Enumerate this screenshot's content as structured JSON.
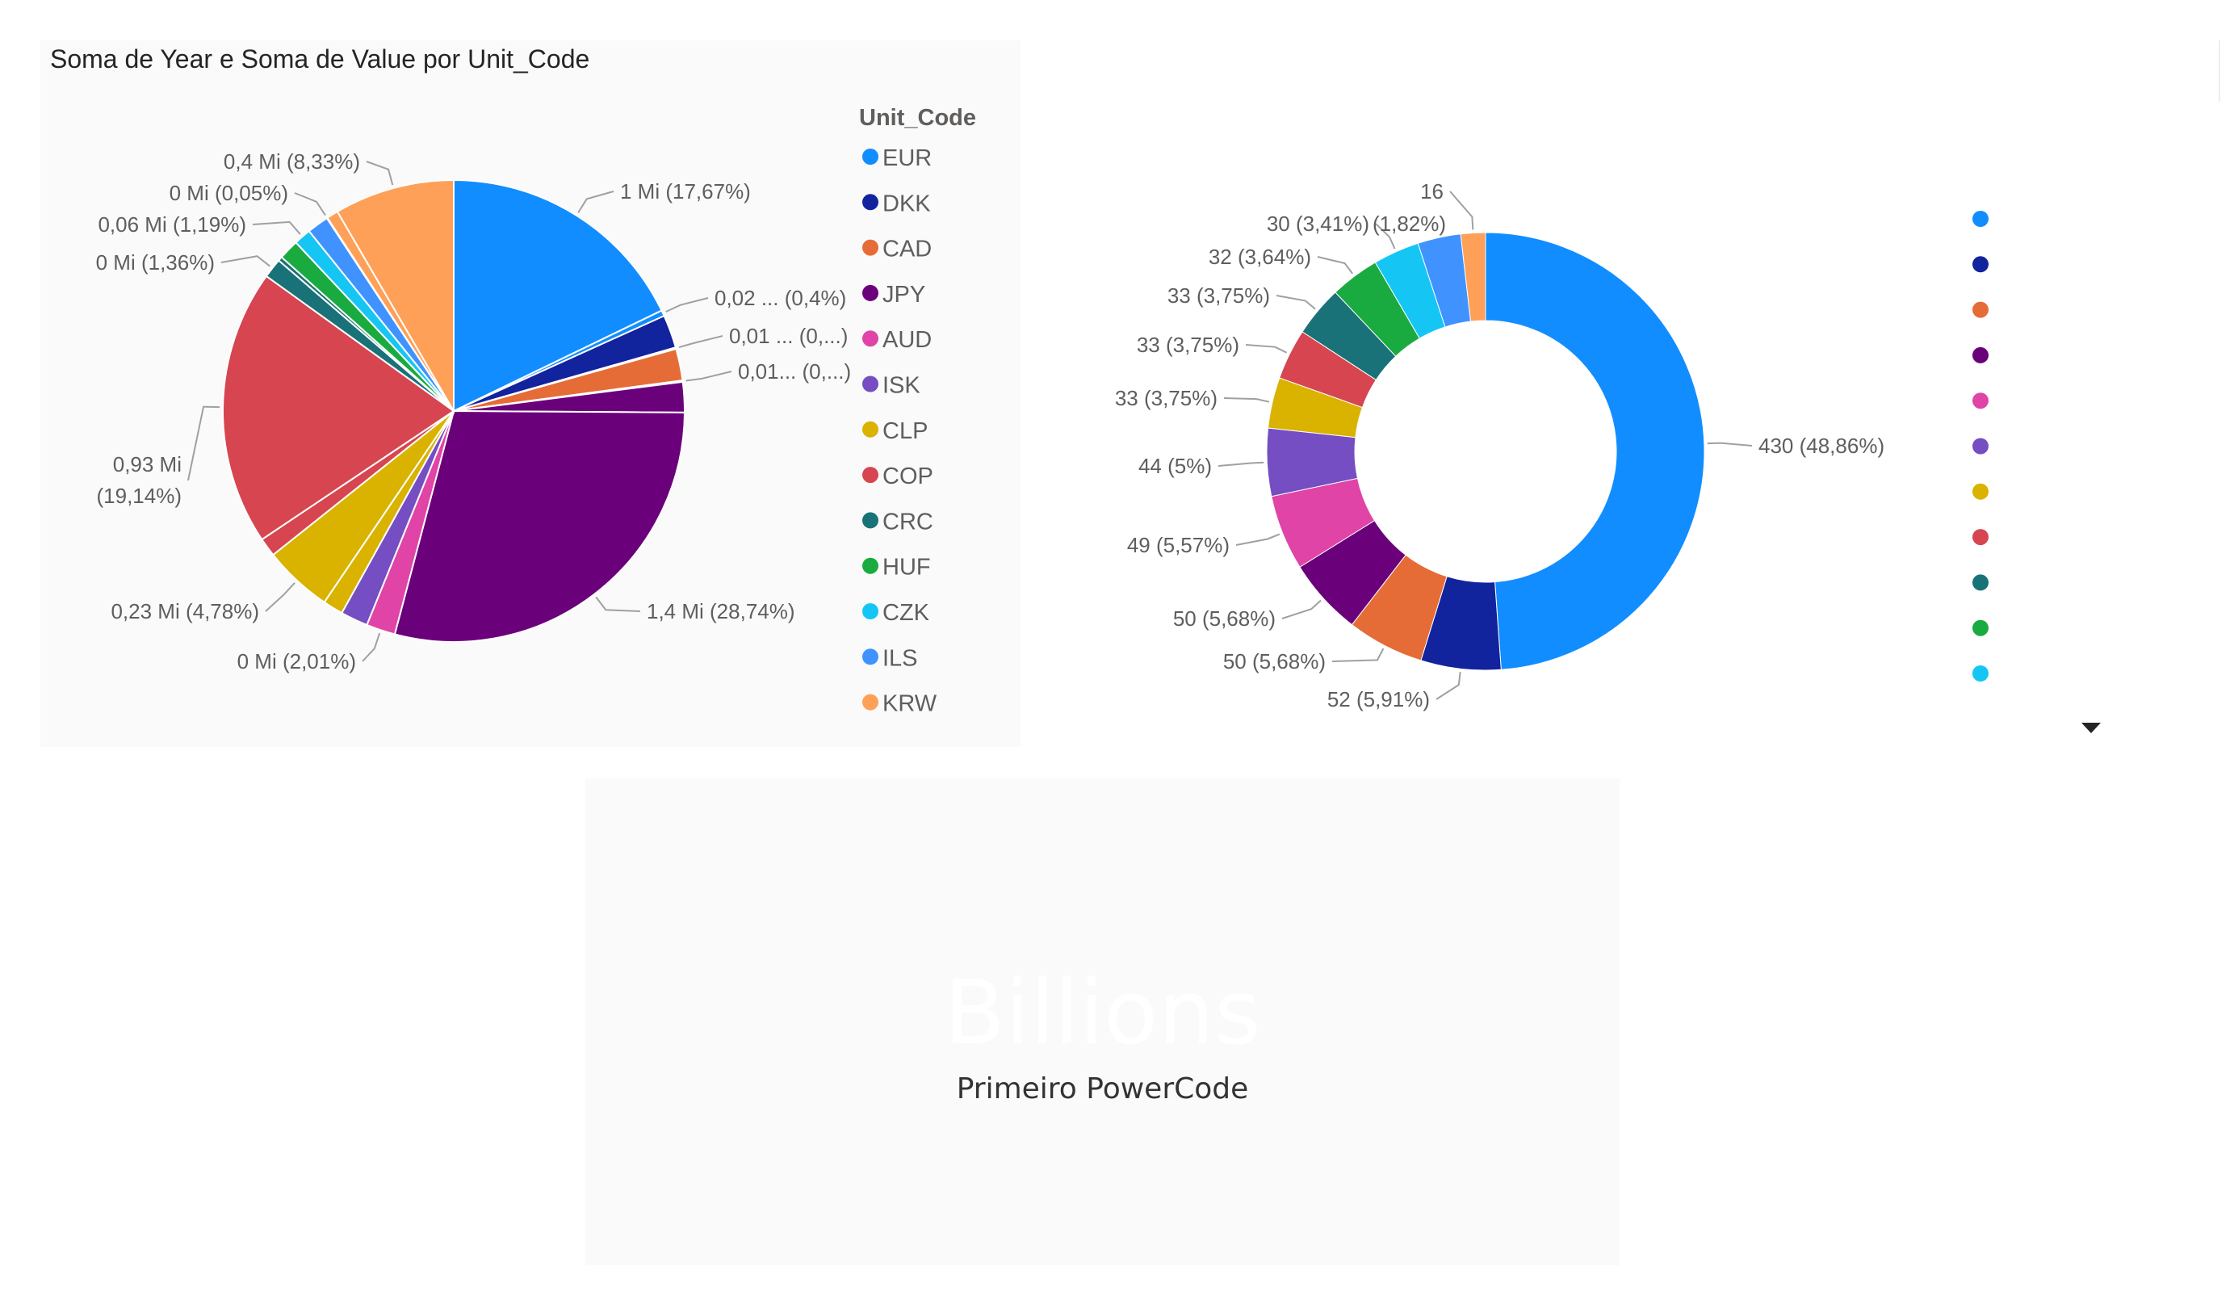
{
  "colors": {
    "EUR": "#118DFF",
    "DKK": "#12239E",
    "CAD": "#E66C37",
    "JPY": "#6B007B",
    "AUD": "#E044A7",
    "ISK": "#744EC2",
    "CLP": "#D9B300",
    "COP": "#D64550",
    "CRC": "#197278",
    "HUF": "#1AAB40",
    "CZK": "#15C6F4",
    "ILS": "#4092FF",
    "KRW": "#FFA058"
  },
  "chart_data": [
    {
      "type": "pie",
      "title": "Soma de Year e Soma de Value por Unit_Code",
      "legend_title": "Unit_Code",
      "legend": [
        "EUR",
        "DKK",
        "CAD",
        "JPY",
        "AUD",
        "ISK",
        "CLP",
        "COP",
        "CRC",
        "HUF",
        "CZK",
        "ILS",
        "KRW"
      ],
      "legend_position": "right",
      "slices": [
        {
          "category": "EUR",
          "percent": 17.67,
          "label": "1 Mi (17,67%)"
        },
        {
          "category": "EUR",
          "percent": 0.4,
          "label": "0,02 ... (0,4%)"
        },
        {
          "category": "DKK",
          "percent": 2.3,
          "label": null
        },
        {
          "category": "DKK",
          "percent": 0.1,
          "label": "0,01 ... (0,...)"
        },
        {
          "category": "CAD",
          "percent": 2.2,
          "label": null
        },
        {
          "category": "CAD",
          "percent": 0.1,
          "label": "0,01... (0,...)"
        },
        {
          "category": "JPY",
          "percent": 2.1,
          "label": null
        },
        {
          "category": "JPY",
          "percent": 28.74,
          "label": "1,4 Mi (28,74%)"
        },
        {
          "category": "AUD",
          "percent": 2.01,
          "label": "0 Mi (2,01%)"
        },
        {
          "category": "ISK",
          "percent": 1.9,
          "label": null
        },
        {
          "category": "CLP",
          "percent": 1.4,
          "label": null
        },
        {
          "category": "CLP",
          "percent": 4.78,
          "label": "0,23 Mi (4,78%)"
        },
        {
          "category": "COP",
          "percent": 1.3,
          "label": null
        },
        {
          "category": "COP",
          "percent": 19.14,
          "label": "0,93 Mi (19,14%)"
        },
        {
          "category": "CRC",
          "percent": 1.36,
          "label": "0 Mi (1,36%)"
        },
        {
          "category": "CRC",
          "percent": 0.3,
          "label": null
        },
        {
          "category": "HUF",
          "percent": 1.4,
          "label": null
        },
        {
          "category": "CZK",
          "percent": 1.19,
          "label": "0,06 Mi (1,19%)"
        },
        {
          "category": "ILS",
          "percent": 1.5,
          "label": null
        },
        {
          "category": "KRW",
          "percent": 0.05,
          "label": "0 Mi (0,05%)"
        },
        {
          "category": "KRW",
          "percent": 0.8,
          "label": null
        },
        {
          "category": "KRW",
          "percent": 8.33,
          "label": "0,4 Mi (8,33%)"
        }
      ]
    },
    {
      "type": "pie",
      "subtype": "donut",
      "legend_position": "right",
      "slices": [
        {
          "category": "EUR",
          "value": 430,
          "label": "430 (48,86%)"
        },
        {
          "category": "DKK",
          "value": 52,
          "label": "52 (5,91%)"
        },
        {
          "category": "CAD",
          "value": 50,
          "label": "50 (5,68%)"
        },
        {
          "category": "JPY",
          "value": 50,
          "label": "50 (5,68%)"
        },
        {
          "category": "AUD",
          "value": 49,
          "label": "49 (5,57%)"
        },
        {
          "category": "ISK",
          "value": 44,
          "label": "44 (5%)"
        },
        {
          "category": "CLP",
          "value": 33,
          "label": "33 (3,75%)"
        },
        {
          "category": "COP",
          "value": 33,
          "label": "33 (3,75%)"
        },
        {
          "category": "CRC",
          "value": 33,
          "label": "33 (3,75%)"
        },
        {
          "category": "HUF",
          "value": 32,
          "label": "32 (3,64%)"
        },
        {
          "category": "CZK",
          "value": 30,
          "label": "30 (3,41%)"
        },
        {
          "category": "ILS",
          "value": 28,
          "label": null
        },
        {
          "category": "KRW",
          "value": 16,
          "label": "16",
          "label2": "(1,82%)"
        }
      ],
      "legend_dots": [
        "EUR",
        "DKK",
        "CAD",
        "JPY",
        "AUD",
        "ISK",
        "CLP",
        "COP",
        "CRC",
        "HUF",
        "CZK"
      ]
    }
  ],
  "card": {
    "value": "Billions",
    "label": "Primeiro PowerCode"
  }
}
